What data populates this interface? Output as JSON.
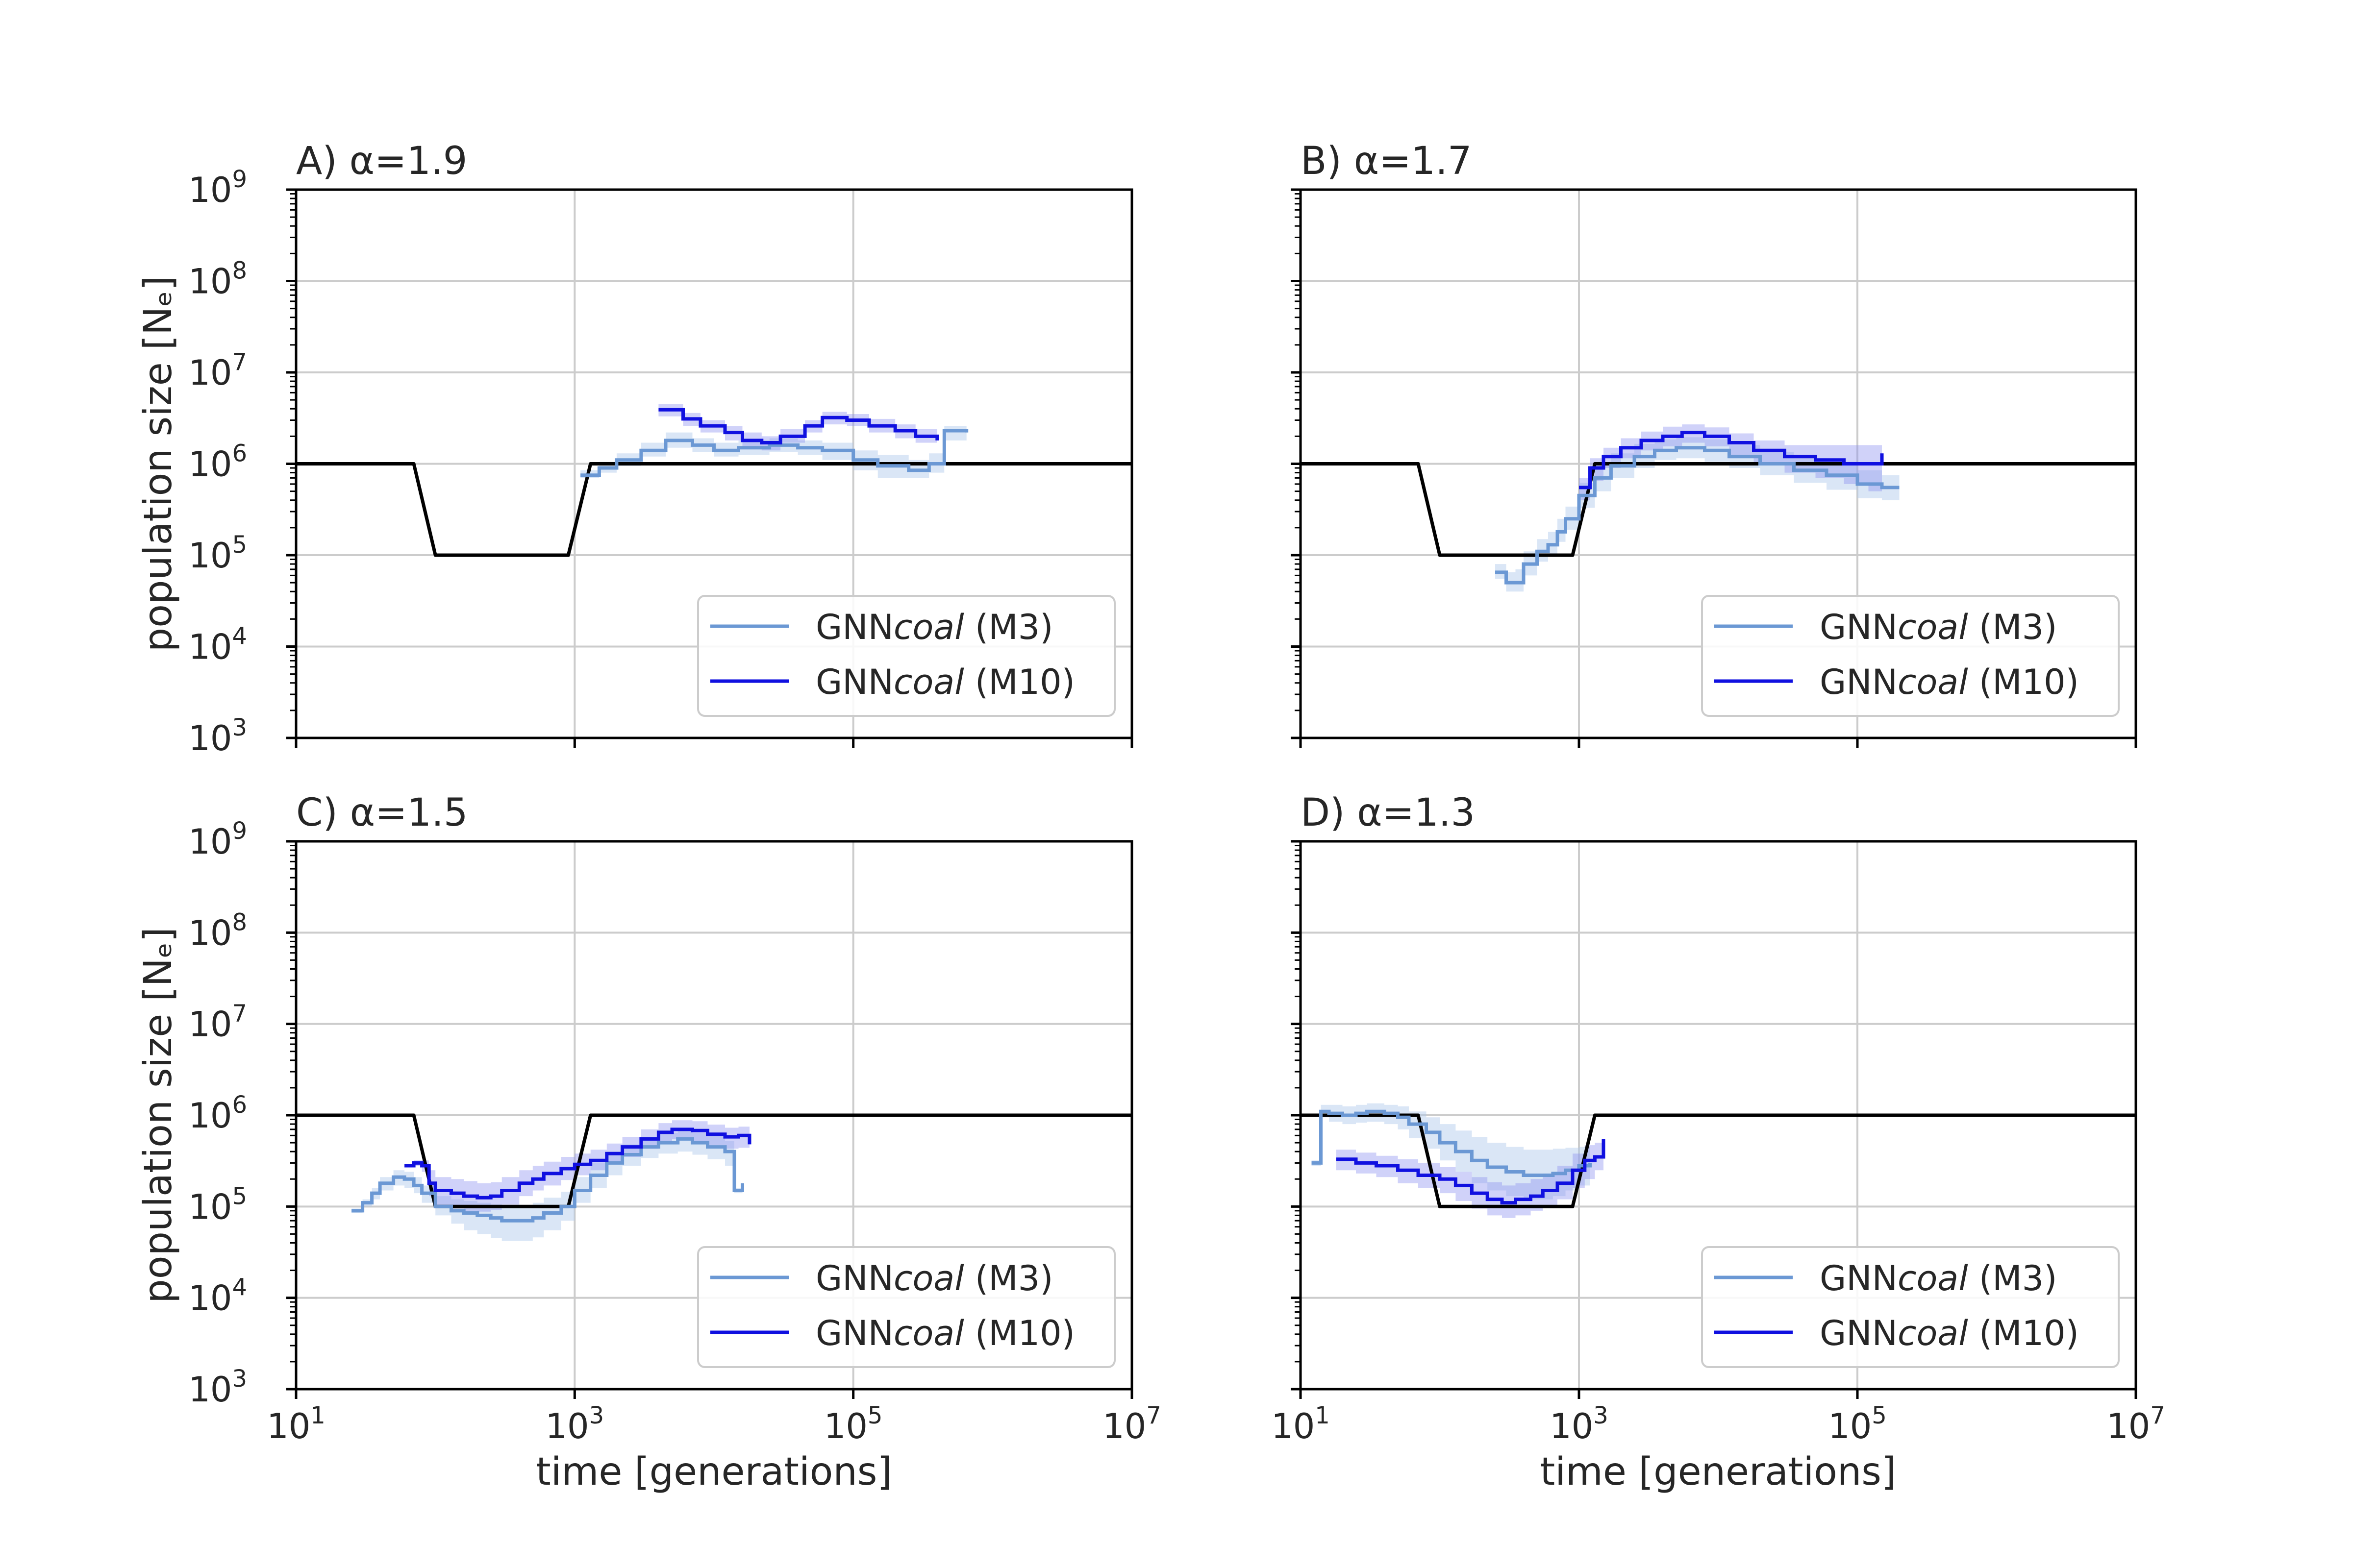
{
  "figure": {
    "xlabel": "time [generations]",
    "ylabel": "population size [Nₑ]",
    "x_ticks": [
      {
        "base": "10",
        "exp": "1",
        "value": 10
      },
      {
        "base": "10",
        "exp": "3",
        "value": 1000
      },
      {
        "base": "10",
        "exp": "5",
        "value": 100000
      },
      {
        "base": "10",
        "exp": "7",
        "value": 10000000
      }
    ],
    "y_ticks": [
      {
        "base": "10",
        "exp": "3",
        "value": 1000
      },
      {
        "base": "10",
        "exp": "4",
        "value": 10000
      },
      {
        "base": "10",
        "exp": "5",
        "value": 100000
      },
      {
        "base": "10",
        "exp": "6",
        "value": 1000000
      },
      {
        "base": "10",
        "exp": "7",
        "value": 10000000
      },
      {
        "base": "10",
        "exp": "8",
        "value": 100000000
      },
      {
        "base": "10",
        "exp": "9",
        "value": 1000000000
      }
    ],
    "legend": [
      {
        "prefix": "GNN",
        "italic": "coal",
        "suffix": " (M3)",
        "color": "#6b98d4"
      },
      {
        "prefix": "GNN",
        "italic": "coal",
        "suffix": " (M10)",
        "color": "#1010e0"
      }
    ],
    "colors": {
      "truth": "#000000",
      "m3": "#6b98d4",
      "m10": "#1010e0",
      "band_m3": "#aec8ea",
      "band_m10": "#8a8ff0",
      "grid": "#cccccc"
    }
  },
  "chart_data": [
    {
      "type": "line",
      "title": "A) α=1.9",
      "xlabel": "time [generations]",
      "ylabel": "population size [Nₑ]",
      "x_scale": "log",
      "y_scale": "log",
      "xlim": [
        10,
        10000000
      ],
      "ylim": [
        1000,
        1000000000
      ],
      "grid": true,
      "legend_position": "lower-right",
      "truth": {
        "x": [
          10,
          70,
          100,
          900,
          1300,
          10000000
        ],
        "y": [
          1000000,
          1000000,
          100000,
          100000,
          1000000,
          1000000
        ]
      },
      "series": [
        {
          "name": "GNNcoal (M3)",
          "x": [
            1100,
            1500,
            2000,
            3000,
            4500,
            7000,
            10000,
            15000,
            25000,
            40000,
            60000,
            100000,
            150000,
            250000,
            350000,
            450000,
            650000
          ],
          "y": [
            750000,
            900000,
            1100000,
            1400000,
            1800000,
            1600000,
            1400000,
            1500000,
            1600000,
            1500000,
            1400000,
            1100000,
            950000,
            850000,
            1000000,
            2300000,
            2200000
          ],
          "lower": [
            700000,
            800000,
            950000,
            1200000,
            1500000,
            1350000,
            1200000,
            1250000,
            1350000,
            1250000,
            1100000,
            850000,
            700000,
            700000,
            800000,
            1800000,
            1800000
          ],
          "upper": [
            850000,
            1050000,
            1300000,
            1700000,
            2200000,
            1900000,
            1700000,
            1800000,
            1900000,
            1800000,
            1700000,
            1400000,
            1250000,
            1100000,
            1300000,
            2600000,
            2500000
          ]
        },
        {
          "name": "GNNcoal (M10)",
          "x": [
            4000,
            6000,
            8000,
            12000,
            16000,
            22000,
            30000,
            45000,
            60000,
            90000,
            130000,
            200000,
            280000,
            400000
          ],
          "y": [
            3900000,
            3100000,
            2600000,
            2200000,
            1800000,
            1700000,
            2000000,
            2600000,
            3200000,
            3000000,
            2600000,
            2300000,
            2000000,
            1800000
          ],
          "lower": [
            3300000,
            2600000,
            2200000,
            1800000,
            1500000,
            1400000,
            1700000,
            2200000,
            2700000,
            2600000,
            2200000,
            1900000,
            1700000,
            1500000
          ],
          "upper": [
            4500000,
            3600000,
            3000000,
            2600000,
            2200000,
            2000000,
            2400000,
            3000000,
            3700000,
            3500000,
            3100000,
            2700000,
            2400000,
            2100000
          ]
        }
      ]
    },
    {
      "type": "line",
      "title": "B) α=1.7",
      "xlabel": "time [generations]",
      "ylabel": "population size [Nₑ]",
      "x_scale": "log",
      "y_scale": "log",
      "xlim": [
        10,
        10000000
      ],
      "ylim": [
        1000,
        1000000000
      ],
      "grid": true,
      "legend_position": "lower-right",
      "truth": {
        "x": [
          10,
          70,
          100,
          900,
          1300,
          10000000
        ],
        "y": [
          1000000,
          1000000,
          100000,
          100000,
          1000000,
          1000000
        ]
      },
      "series": [
        {
          "name": "GNNcoal (M3)",
          "x": [
            250,
            300,
            350,
            400,
            500,
            600,
            700,
            800,
            1000,
            1300,
            1700,
            2500,
            3500,
            5000,
            8000,
            12000,
            20000,
            35000,
            60000,
            100000,
            150000,
            200000
          ],
          "y": [
            65000,
            50000,
            50000,
            80000,
            110000,
            130000,
            180000,
            250000,
            450000,
            700000,
            950000,
            1200000,
            1400000,
            1500000,
            1400000,
            1200000,
            1000000,
            850000,
            750000,
            600000,
            550000,
            550000
          ],
          "lower": [
            55000,
            40000,
            40000,
            60000,
            85000,
            100000,
            140000,
            190000,
            330000,
            500000,
            700000,
            900000,
            1100000,
            1150000,
            1050000,
            900000,
            750000,
            620000,
            520000,
            420000,
            400000,
            420000
          ],
          "upper": [
            80000,
            65000,
            70000,
            110000,
            150000,
            180000,
            250000,
            340000,
            620000,
            950000,
            1300000,
            1650000,
            1850000,
            1950000,
            1850000,
            1600000,
            1350000,
            1150000,
            1050000,
            850000,
            750000,
            700000
          ]
        },
        {
          "name": "GNNcoal (M10)",
          "x": [
            1000,
            1200,
            1500,
            2000,
            2800,
            4000,
            5500,
            8000,
            12000,
            18000,
            30000,
            50000,
            80000,
            120000,
            150000
          ],
          "y": [
            550000,
            900000,
            1200000,
            1500000,
            1800000,
            2000000,
            2200000,
            2000000,
            1700000,
            1400000,
            1200000,
            1100000,
            1000000,
            1000000,
            1300000
          ],
          "lower": [
            400000,
            650000,
            900000,
            1150000,
            1400000,
            1550000,
            1700000,
            1550000,
            1250000,
            1000000,
            800000,
            700000,
            600000,
            500000,
            500000
          ],
          "upper": [
            700000,
            1150000,
            1500000,
            1900000,
            2250000,
            2550000,
            2700000,
            2500000,
            2150000,
            1800000,
            1600000,
            1600000,
            1600000,
            1600000,
            1600000
          ]
        }
      ]
    },
    {
      "type": "line",
      "title": "C) α=1.5",
      "xlabel": "time [generations]",
      "ylabel": "population size [Nₑ]",
      "x_scale": "log",
      "y_scale": "log",
      "xlim": [
        10,
        10000000
      ],
      "ylim": [
        1000,
        1000000000
      ],
      "grid": true,
      "legend_position": "lower-right",
      "truth": {
        "x": [
          10,
          70,
          100,
          900,
          1300,
          10000000
        ],
        "y": [
          1000000,
          1000000,
          100000,
          100000,
          1000000,
          1000000
        ]
      },
      "series": [
        {
          "name": "GNNcoal (M3)",
          "x": [
            25,
            30,
            35,
            40,
            50,
            60,
            70,
            80,
            100,
            130,
            160,
            200,
            250,
            300,
            400,
            500,
            600,
            800,
            1000,
            1300,
            1700,
            2200,
            3000,
            4000,
            5500,
            7000,
            9000,
            12000,
            14000,
            16000
          ],
          "y": [
            90000,
            110000,
            140000,
            180000,
            210000,
            200000,
            170000,
            140000,
            100000,
            90000,
            85000,
            80000,
            75000,
            70000,
            70000,
            75000,
            85000,
            100000,
            150000,
            220000,
            300000,
            370000,
            450000,
            500000,
            550000,
            500000,
            450000,
            400000,
            150000,
            180000
          ],
          "lower": [
            85000,
            100000,
            120000,
            150000,
            170000,
            160000,
            140000,
            110000,
            80000,
            65000,
            55000,
            50000,
            45000,
            42000,
            42000,
            46000,
            55000,
            70000,
            110000,
            160000,
            220000,
            280000,
            340000,
            380000,
            400000,
            370000,
            330000,
            280000,
            140000,
            170000
          ],
          "upper": [
            95000,
            120000,
            160000,
            210000,
            250000,
            240000,
            210000,
            170000,
            130000,
            120000,
            115000,
            110000,
            105000,
            100000,
            100000,
            110000,
            125000,
            145000,
            210000,
            300000,
            400000,
            480000,
            580000,
            640000,
            690000,
            640000,
            590000,
            520000,
            160000,
            190000
          ]
        },
        {
          "name": "GNNcoal (M10)",
          "x": [
            60,
            70,
            80,
            90,
            100,
            130,
            160,
            200,
            250,
            300,
            400,
            500,
            600,
            800,
            1000,
            1300,
            1700,
            2200,
            3000,
            4000,
            5000,
            7000,
            9000,
            12000,
            15000,
            18000
          ],
          "y": [
            280000,
            300000,
            280000,
            180000,
            150000,
            140000,
            130000,
            125000,
            130000,
            150000,
            180000,
            200000,
            230000,
            260000,
            290000,
            320000,
            380000,
            450000,
            550000,
            650000,
            700000,
            680000,
            620000,
            580000,
            600000,
            480000
          ],
          "lower": [
            270000,
            280000,
            240000,
            130000,
            100000,
            95000,
            90000,
            88000,
            92000,
            105000,
            130000,
            150000,
            170000,
            195000,
            220000,
            250000,
            290000,
            350000,
            430000,
            510000,
            550000,
            520000,
            470000,
            430000,
            440000,
            400000
          ],
          "upper": [
            290000,
            320000,
            320000,
            250000,
            210000,
            200000,
            190000,
            180000,
            185000,
            210000,
            250000,
            280000,
            310000,
            350000,
            380000,
            420000,
            490000,
            580000,
            700000,
            820000,
            880000,
            860000,
            790000,
            730000,
            750000,
            560000
          ]
        }
      ]
    },
    {
      "type": "line",
      "title": "D) α=1.3",
      "xlabel": "time [generations]",
      "ylabel": "population size [Nₑ]",
      "x_scale": "log",
      "y_scale": "log",
      "xlim": [
        10,
        10000000
      ],
      "ylim": [
        1000,
        1000000000
      ],
      "grid": true,
      "legend_position": "lower-right",
      "truth": {
        "x": [
          10,
          70,
          100,
          900,
          1300,
          10000000
        ],
        "y": [
          1000000,
          1000000,
          100000,
          100000,
          1000000,
          1000000
        ]
      },
      "series": [
        {
          "name": "GNNcoal (M3)",
          "x": [
            12,
            14,
            16,
            20,
            25,
            30,
            40,
            50,
            60,
            80,
            100,
            130,
            170,
            220,
            300,
            400,
            500,
            650,
            800,
            1000,
            1200
          ],
          "y": [
            300000,
            1100000,
            1050000,
            1000000,
            1050000,
            1100000,
            1050000,
            950000,
            800000,
            650000,
            500000,
            400000,
            320000,
            270000,
            240000,
            220000,
            220000,
            230000,
            250000,
            280000,
            300000
          ],
          "lower": [
            280000,
            950000,
            850000,
            800000,
            830000,
            850000,
            800000,
            700000,
            560000,
            430000,
            320000,
            240000,
            180000,
            150000,
            130000,
            120000,
            120000,
            130000,
            150000,
            170000,
            190000
          ],
          "upper": [
            320000,
            1300000,
            1300000,
            1250000,
            1300000,
            1350000,
            1300000,
            1250000,
            1100000,
            950000,
            800000,
            680000,
            580000,
            500000,
            450000,
            420000,
            420000,
            430000,
            440000,
            450000,
            460000
          ]
        },
        {
          "name": "GNNcoal (M10)",
          "x": [
            18,
            25,
            35,
            50,
            70,
            100,
            130,
            170,
            220,
            280,
            350,
            450,
            550,
            700,
            900,
            1100,
            1300,
            1500
          ],
          "y": [
            330000,
            300000,
            280000,
            250000,
            220000,
            200000,
            170000,
            140000,
            120000,
            110000,
            120000,
            130000,
            150000,
            180000,
            250000,
            320000,
            350000,
            550000
          ],
          "lower": [
            250000,
            230000,
            210000,
            180000,
            160000,
            140000,
            115000,
            95000,
            80000,
            75000,
            80000,
            90000,
            100000,
            120000,
            160000,
            200000,
            250000,
            500000
          ],
          "upper": [
            420000,
            390000,
            360000,
            330000,
            300000,
            270000,
            240000,
            210000,
            185000,
            170000,
            180000,
            200000,
            230000,
            280000,
            380000,
            470000,
            500000,
            600000
          ]
        }
      ]
    }
  ]
}
